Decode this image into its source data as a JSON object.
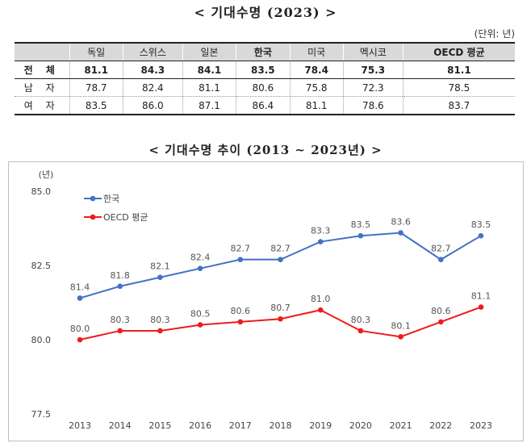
{
  "title_top": "<   기대수명 (2023)  >",
  "unit": "(단위: 년)",
  "table": {
    "columns": [
      "",
      "독일",
      "스위스",
      "일본",
      "한국",
      "미국",
      "멕시코",
      "OECD 평균"
    ],
    "rows": [
      [
        "전 체",
        "81.1",
        "84.3",
        "84.1",
        "83.5",
        "78.4",
        "75.3",
        "81.1"
      ],
      [
        "남 자",
        "78.7",
        "82.4",
        "81.1",
        "80.6",
        "75.8",
        "72.3",
        "78.5"
      ],
      [
        "여 자",
        "83.5",
        "86.0",
        "87.1",
        "86.4",
        "81.1",
        "78.6",
        "83.7"
      ]
    ]
  },
  "title_chart": "< 기대수명 추이 (2013  ~  2023년) >",
  "chart_data": {
    "type": "line",
    "ylabel": "(년)",
    "ylim": [
      77.5,
      85.0
    ],
    "yticks": [
      "85.0",
      "82.5",
      "80.0",
      "77.5"
    ],
    "categories": [
      "2013",
      "2014",
      "2015",
      "2016",
      "2017",
      "2018",
      "2019",
      "2020",
      "2021",
      "2022",
      "2023"
    ],
    "legend_position": "top-left",
    "series": [
      {
        "name": "한국",
        "color": "#4472c4",
        "values": [
          81.4,
          81.8,
          82.1,
          82.4,
          82.7,
          82.7,
          83.3,
          83.5,
          83.6,
          82.7,
          83.5
        ]
      },
      {
        "name": "OECD 평균",
        "color": "#ee1c1c",
        "values": [
          80.0,
          80.3,
          80.3,
          80.5,
          80.6,
          80.7,
          81.0,
          80.3,
          80.1,
          80.6,
          81.1
        ]
      }
    ]
  }
}
